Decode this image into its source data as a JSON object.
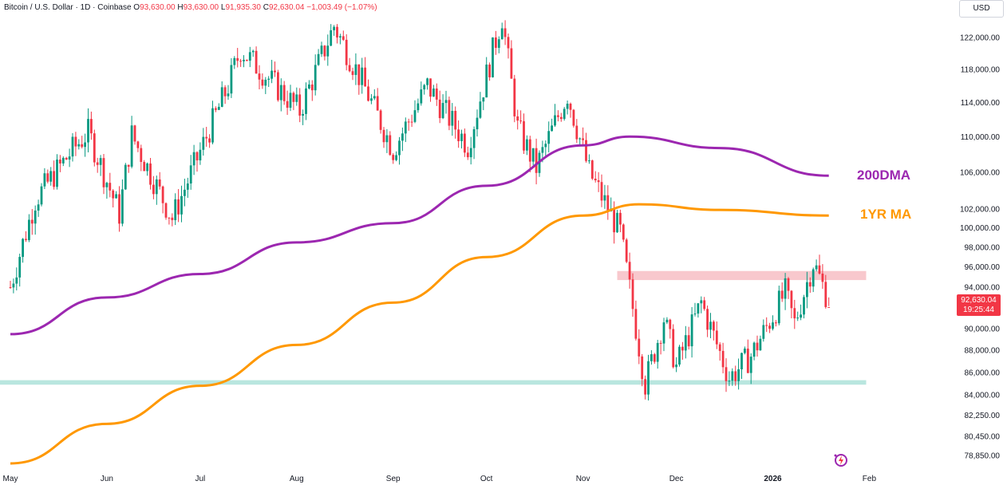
{
  "header": {
    "symbol": "Bitcoin / U.S. Dollar · 1D · Coinbase",
    "open_label": "O",
    "open": "93,630.00",
    "high_label": "H",
    "high": "93,630.00",
    "low_label": "L",
    "low": "91,935.30",
    "close_label": "C",
    "close": "92,630.04",
    "change": "−1,003.49 (−1.07%)"
  },
  "currency_button": "USD",
  "last_price": {
    "price": "92,630.04",
    "countdown": "19:25:44"
  },
  "colors": {
    "up": "#089981",
    "down": "#f23645",
    "ma200": "#9c27b0",
    "ma1yr": "#ff9800",
    "resistance_zone": "#f8c8cd",
    "support_zone": "#b9e6df"
  },
  "chart_data": {
    "type": "candlestick",
    "x_axis_labels": [
      "May",
      "Jun",
      "Jul",
      "Aug",
      "Sep",
      "Oct",
      "Nov",
      "Dec",
      "2026",
      "Feb"
    ],
    "y_axis_labels": [
      "122,000.00",
      "118,000.00",
      "114,000.00",
      "110,000.00",
      "106,000.00",
      "102,000.00",
      "100,000.00",
      "98,000.00",
      "96,000.00",
      "94,000.00",
      "90,000.00",
      "88,000.00",
      "86,000.00",
      "84,000.00",
      "82,250.00",
      "80,450.00",
      "78,850.00"
    ],
    "y_scale": "log",
    "ylim": [
      78000,
      126000
    ],
    "anchors": [
      {
        "date": "2025-05-01",
        "close": 94000
      },
      {
        "date": "2025-05-09",
        "close": 103000
      },
      {
        "date": "2025-05-21",
        "close": 108500
      },
      {
        "date": "2025-05-26",
        "close": 110500
      },
      {
        "date": "2025-06-05",
        "close": 101500
      },
      {
        "date": "2025-06-09",
        "close": 110200
      },
      {
        "date": "2025-06-22",
        "close": 101000
      },
      {
        "date": "2025-06-30",
        "close": 107500
      },
      {
        "date": "2025-07-10",
        "close": 116000
      },
      {
        "date": "2025-07-14",
        "close": 120500
      },
      {
        "date": "2025-08-02",
        "close": 113000
      },
      {
        "date": "2025-08-13",
        "close": 123500
      },
      {
        "date": "2025-08-22",
        "close": 116500
      },
      {
        "date": "2025-09-01",
        "close": 108500
      },
      {
        "date": "2025-09-12",
        "close": 116000
      },
      {
        "date": "2025-09-25",
        "close": 109000
      },
      {
        "date": "2025-10-06",
        "close": 124700
      },
      {
        "date": "2025-10-11",
        "close": 111000
      },
      {
        "date": "2025-10-17",
        "close": 106500
      },
      {
        "date": "2025-10-27",
        "close": 115000
      },
      {
        "date": "2025-11-03",
        "close": 106000
      },
      {
        "date": "2025-11-13",
        "close": 99500
      },
      {
        "date": "2025-11-21",
        "close": 85000
      },
      {
        "date": "2025-11-27",
        "close": 91000
      },
      {
        "date": "2025-12-01",
        "close": 86500
      },
      {
        "date": "2025-12-09",
        "close": 92500
      },
      {
        "date": "2025-12-18",
        "close": 85500
      },
      {
        "date": "2025-12-25",
        "close": 87500
      },
      {
        "date": "2026-01-05",
        "close": 93500
      },
      {
        "date": "2026-01-08",
        "close": 90500
      },
      {
        "date": "2026-01-14",
        "close": 96500
      },
      {
        "date": "2026-01-19",
        "close": 92630
      }
    ],
    "series": [
      {
        "name": "200DMA",
        "points": [
          {
            "date": "2025-05-01",
            "value": 89500
          },
          {
            "date": "2025-06-01",
            "value": 93000
          },
          {
            "date": "2025-07-01",
            "value": 95300
          },
          {
            "date": "2025-08-01",
            "value": 98500
          },
          {
            "date": "2025-09-01",
            "value": 100500
          },
          {
            "date": "2025-10-01",
            "value": 104500
          },
          {
            "date": "2025-11-01",
            "value": 109000
          },
          {
            "date": "2025-11-16",
            "value": 110000
          },
          {
            "date": "2025-12-15",
            "value": 108700
          },
          {
            "date": "2026-01-19",
            "value": 105600
          }
        ]
      },
      {
        "name": "1YR MA",
        "points": [
          {
            "date": "2025-05-01",
            "value": 78200
          },
          {
            "date": "2025-06-01",
            "value": 81500
          },
          {
            "date": "2025-07-01",
            "value": 84800
          },
          {
            "date": "2025-08-01",
            "value": 88500
          },
          {
            "date": "2025-09-01",
            "value": 92500
          },
          {
            "date": "2025-10-01",
            "value": 97000
          },
          {
            "date": "2025-11-01",
            "value": 101300
          },
          {
            "date": "2025-11-19",
            "value": 102500
          },
          {
            "date": "2025-12-15",
            "value": 101900
          },
          {
            "date": "2026-01-19",
            "value": 101300
          }
        ]
      }
    ],
    "zones": [
      {
        "name": "resistance",
        "low": 94700,
        "high": 95600,
        "from": "2025-11-12",
        "to": "2026-01-31"
      },
      {
        "name": "support",
        "low": 84900,
        "high": 85300,
        "from": "2025-04-25",
        "to": "2026-01-31"
      }
    ],
    "legend": [
      "200DMA",
      "1YR MA"
    ]
  }
}
